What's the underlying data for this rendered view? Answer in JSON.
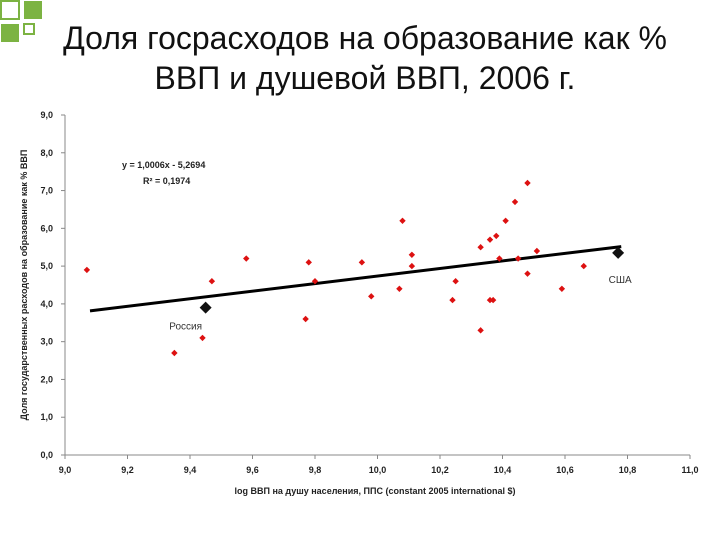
{
  "slide": {
    "title_line1": "Доля госрасходов на образование как %",
    "title_line2": "ВВП и душевой ВВП, 2006 г."
  },
  "colors": {
    "point": "#dd1111",
    "highlight": "#111111",
    "trend": "#000000",
    "deco": "#7cb342"
  },
  "chart_data": {
    "type": "scatter",
    "xlabel": "log ВВП на душу населения, ППС (constant 2005 international $)",
    "ylabel": "Доля государственных расходов на образование как % ВВП",
    "xlim": [
      9.0,
      11.0
    ],
    "ylim": [
      0.0,
      9.0
    ],
    "xticks": [
      "9,0",
      "9,2",
      "9,4",
      "9,6",
      "9,8",
      "10,0",
      "10,2",
      "10,4",
      "10,6",
      "10,8",
      "11,0"
    ],
    "yticks": [
      "0,0",
      "1,0",
      "2,0",
      "3,0",
      "4,0",
      "5,0",
      "6,0",
      "7,0",
      "8,0",
      "9,0"
    ],
    "grid": false,
    "equation": "y = 1,0006x - 5,2694",
    "r2": "R² = 0,1974",
    "trendline": {
      "slope": 1.0006,
      "intercept": -5.2694,
      "x_range": [
        9.08,
        10.78
      ]
    },
    "points": [
      {
        "x": 9.07,
        "y": 4.9
      },
      {
        "x": 9.35,
        "y": 2.7
      },
      {
        "x": 9.44,
        "y": 3.1
      },
      {
        "x": 9.47,
        "y": 4.6
      },
      {
        "x": 9.58,
        "y": 5.2
      },
      {
        "x": 9.77,
        "y": 3.6
      },
      {
        "x": 9.78,
        "y": 5.1
      },
      {
        "x": 9.8,
        "y": 4.6
      },
      {
        "x": 9.95,
        "y": 5.1
      },
      {
        "x": 9.98,
        "y": 4.2
      },
      {
        "x": 10.07,
        "y": 4.4
      },
      {
        "x": 10.08,
        "y": 6.2
      },
      {
        "x": 10.11,
        "y": 5.3
      },
      {
        "x": 10.11,
        "y": 5.0
      },
      {
        "x": 10.24,
        "y": 4.1
      },
      {
        "x": 10.25,
        "y": 4.6
      },
      {
        "x": 10.33,
        "y": 3.3
      },
      {
        "x": 10.33,
        "y": 5.5
      },
      {
        "x": 10.36,
        "y": 5.7
      },
      {
        "x": 10.36,
        "y": 4.1
      },
      {
        "x": 10.37,
        "y": 4.1
      },
      {
        "x": 10.38,
        "y": 5.8
      },
      {
        "x": 10.39,
        "y": 5.2
      },
      {
        "x": 10.41,
        "y": 6.2
      },
      {
        "x": 10.44,
        "y": 6.7
      },
      {
        "x": 10.45,
        "y": 5.2
      },
      {
        "x": 10.48,
        "y": 7.2
      },
      {
        "x": 10.48,
        "y": 4.8
      },
      {
        "x": 10.51,
        "y": 5.4
      },
      {
        "x": 10.59,
        "y": 4.4
      },
      {
        "x": 10.66,
        "y": 5.0
      }
    ],
    "highlights": [
      {
        "label": "Россия",
        "x": 9.45,
        "y": 3.9
      },
      {
        "label": "США",
        "x": 10.77,
        "y": 5.35
      }
    ]
  }
}
